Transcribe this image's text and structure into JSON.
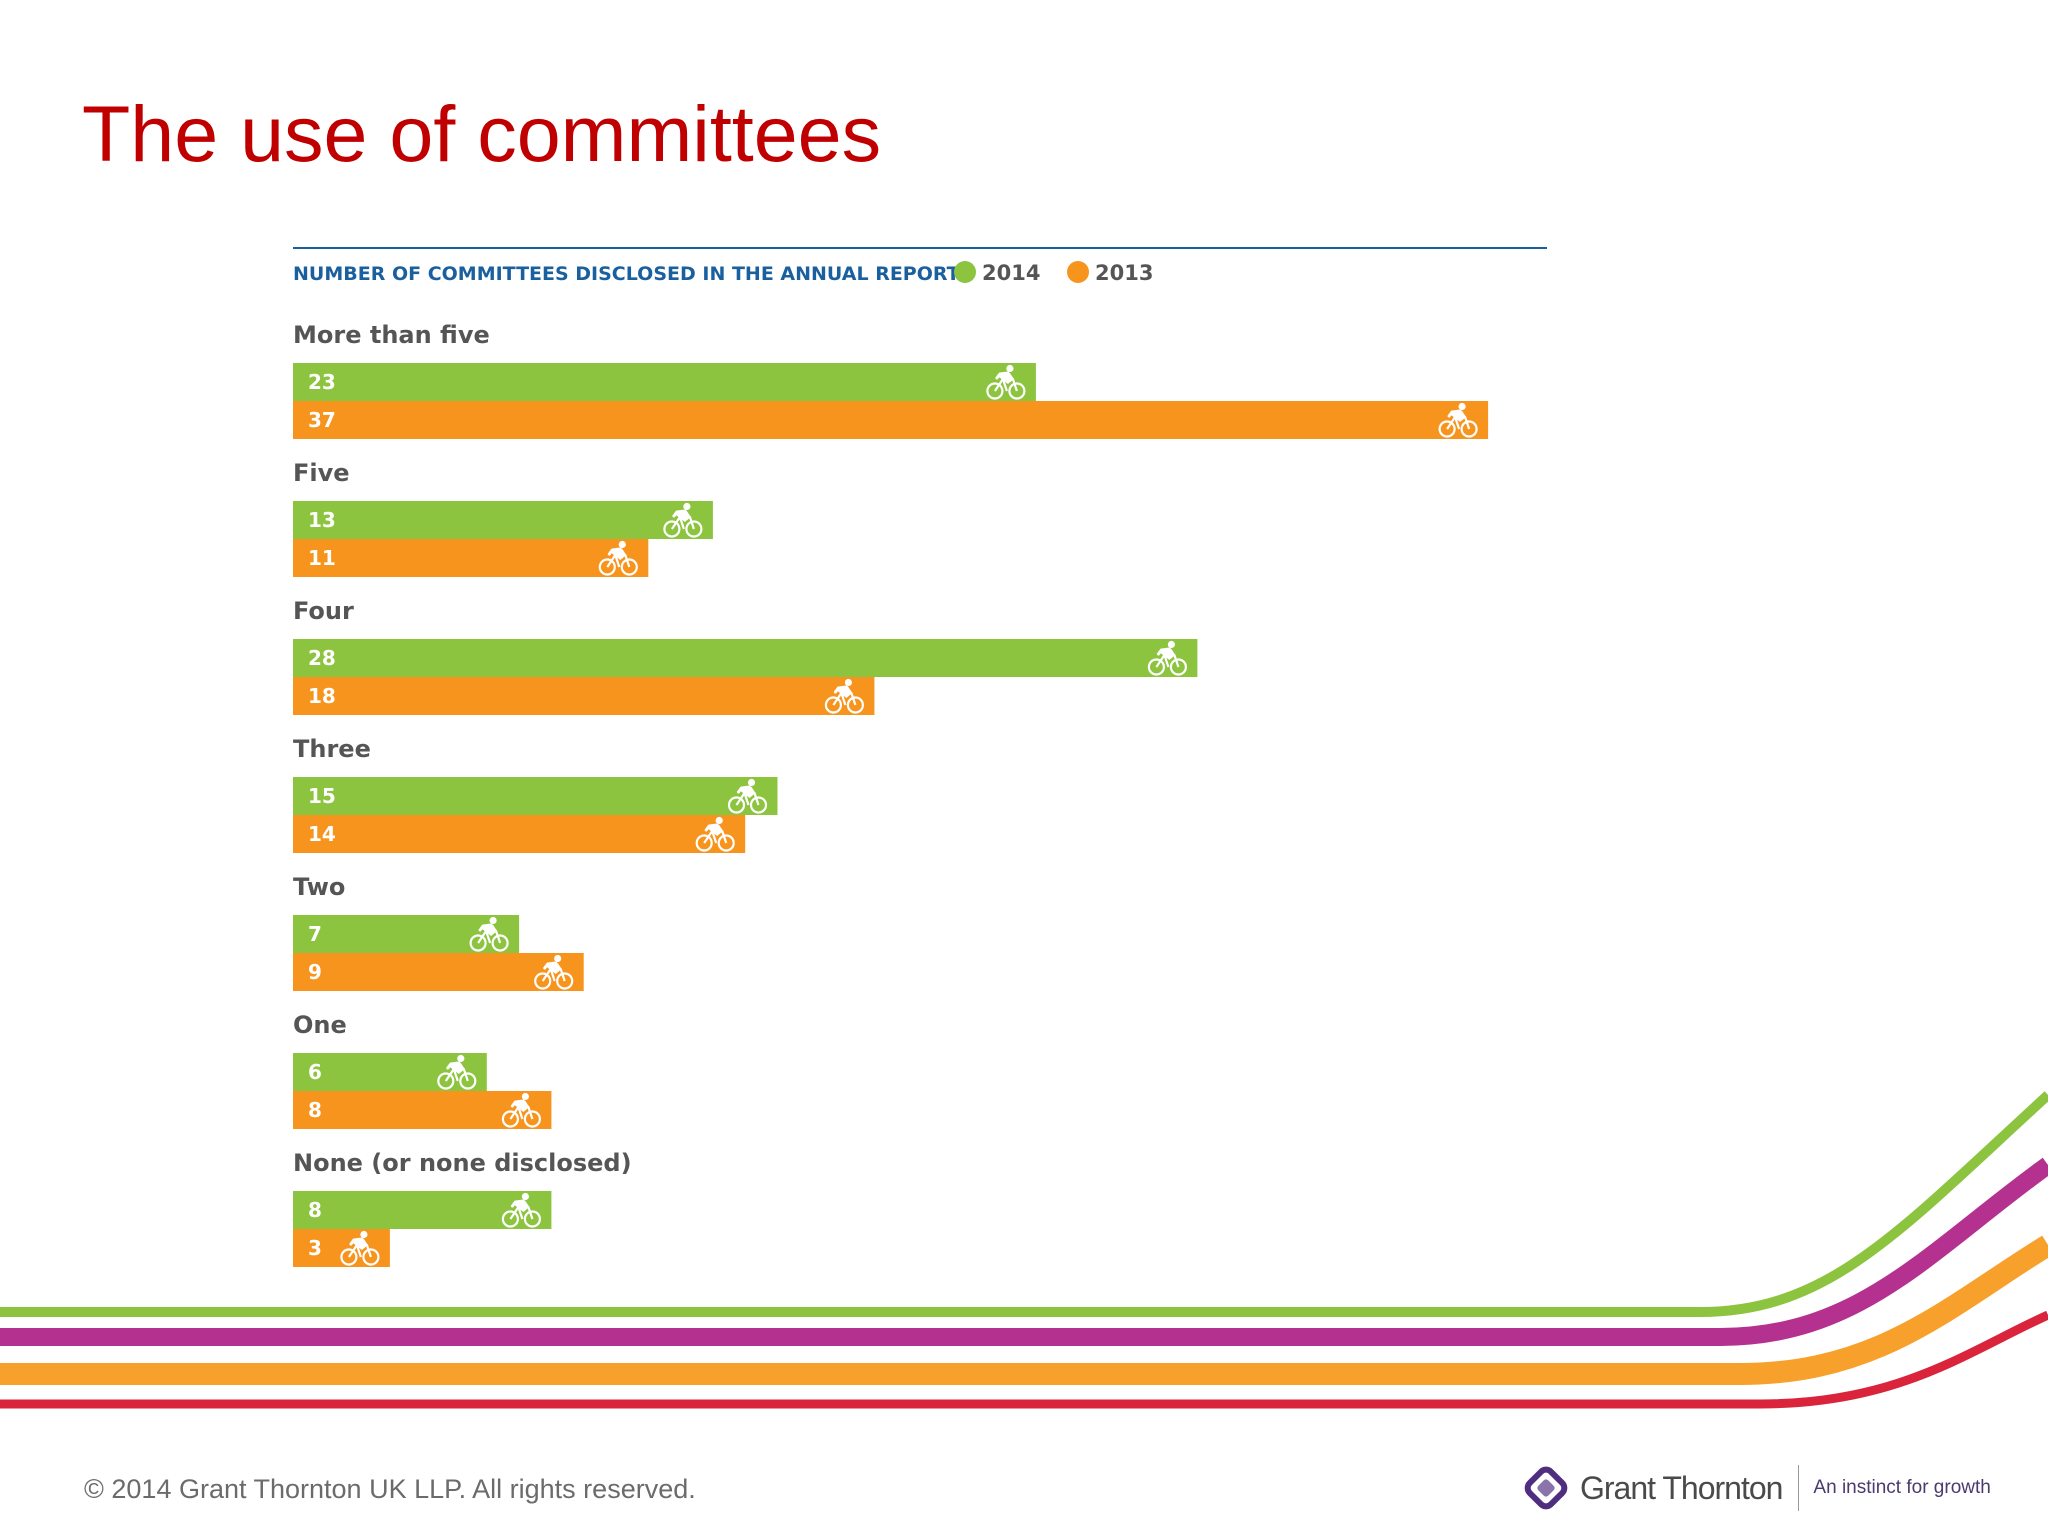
{
  "slide": {
    "title": "The use of committees",
    "footer": "© 2014 Grant Thornton UK LLP. All rights reserved."
  },
  "brand": {
    "logo_name": "Grant Thornton",
    "tagline": "An instinct for growth",
    "logo_icon": "grant-thornton-logo-icon"
  },
  "colors": {
    "title": "#c00000",
    "series_2014": "#8cc43f",
    "series_2013": "#f7941d",
    "heading": "#1a5f9e",
    "stripe_green": "#8cc43f",
    "stripe_purple": "#b5318f",
    "stripe_orange": "#f7a12c",
    "stripe_red": "#d9243c"
  },
  "chart_data": {
    "type": "bar",
    "orientation": "horizontal",
    "title": "NUMBER OF COMMITTEES DISCLOSED IN THE ANNUAL REPORT",
    "legend_position": "top",
    "bar_icon": "cyclist-icon",
    "categories": [
      "More than five",
      "Five",
      "Four",
      "Three",
      "Two",
      "One",
      "None (or none disclosed)"
    ],
    "series": [
      {
        "name": "2014",
        "color": "#8cc43f",
        "values": [
          23,
          13,
          28,
          15,
          7,
          6,
          8
        ]
      },
      {
        "name": "2013",
        "color": "#f7941d",
        "values": [
          37,
          11,
          18,
          14,
          9,
          8,
          3
        ]
      }
    ]
  }
}
